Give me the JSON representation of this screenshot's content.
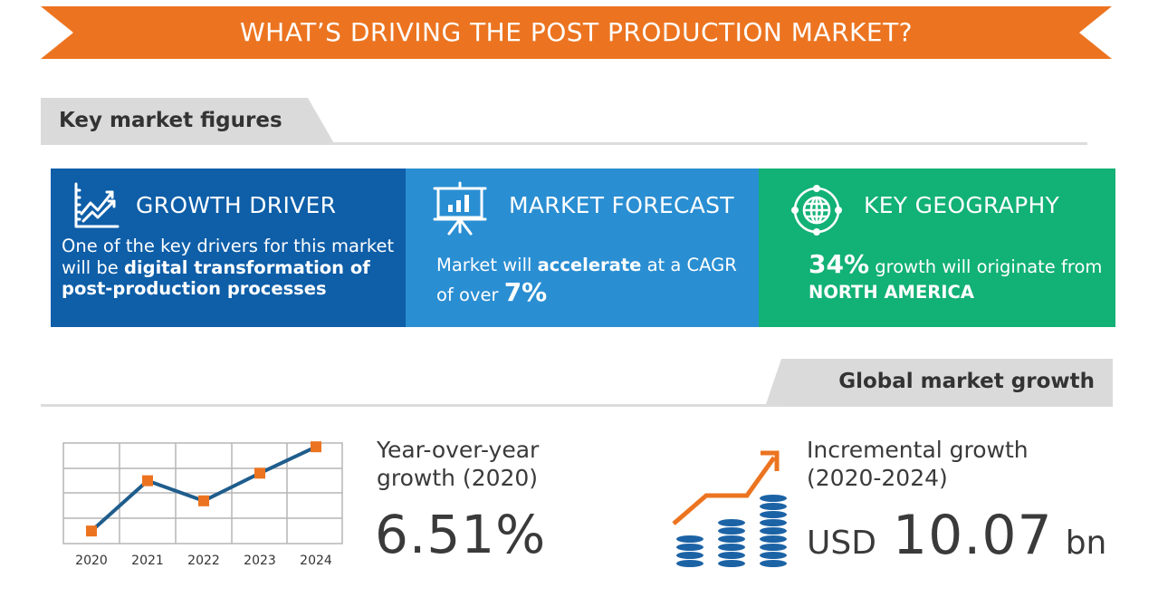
{
  "banner": {
    "title": "WHAT’S DRIVING THE POST PRODUCTION MARKET?",
    "color": "#ec7420"
  },
  "sections": {
    "key_figures_title": "Key market figures",
    "global_growth_title": "Global market growth"
  },
  "cards": [
    {
      "title": "GROWTH DRIVER",
      "icon": "growth-chart-icon",
      "color": "#0e5ea8",
      "body_prefix": "One of the key drivers for this market will be ",
      "body_bold": "digital transformation of post-production processes"
    },
    {
      "title": "MARKET FORECAST",
      "icon": "presentation-board-icon",
      "color": "#2a8ed2",
      "body_part1": "Market will ",
      "body_bold": "accelerate",
      "body_part2": " at a CAGR of over ",
      "body_big": "7%"
    },
    {
      "title": "KEY GEOGRAPHY",
      "icon": "globe-network-icon",
      "color": "#12b176",
      "body_big": "34%",
      "body_part1": " growth will originate from ",
      "body_bold": "NORTH AMERICA"
    }
  ],
  "yoy": {
    "label_line1": "Year-over-year",
    "label_line2": "growth (2020)",
    "value": "6.51%"
  },
  "incremental": {
    "label_line1": "Incremental growth",
    "label_line2": "(2020-2024)",
    "unit_prefix": "USD",
    "value": "10.07",
    "unit_suffix": "bn",
    "icon": "coins-growth-icon"
  },
  "chart_data": {
    "type": "line",
    "title": "",
    "categories": [
      "2020",
      "2021",
      "2022",
      "2023",
      "2024"
    ],
    "values": [
      0.5,
      2.5,
      1.7,
      2.8,
      3.85
    ],
    "xlabel": "",
    "ylabel": "",
    "ylim": [
      0,
      4
    ],
    "grid": true,
    "legend": null,
    "line_color": "#1f5d8c",
    "marker_color": "#ec7420",
    "note": "Illustrative trend icon with no y-axis labels; values are relative positions on a 4-row grid"
  }
}
